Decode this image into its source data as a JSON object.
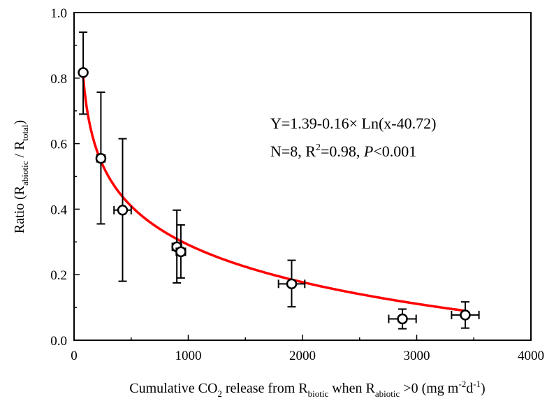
{
  "chart_data": {
    "type": "scatter",
    "title": "",
    "xlabel_parts": {
      "a": "Cumulative CO",
      "sub1": "2",
      "b": " release from R",
      "sub2": "biotic",
      "c": " when R",
      "sub3": "abiotic",
      "d": " >0 (mg m",
      "sup1": "-2",
      "e": "d",
      "sup2": "-1",
      "f": ")"
    },
    "ylabel_parts": {
      "a": "Ratio (R",
      "sub1": "abiotic",
      "b": " / R",
      "sub2": "total",
      "c": ")"
    },
    "xlim": [
      0,
      4000
    ],
    "ylim": [
      0,
      1.0
    ],
    "xticks": [
      0,
      1000,
      2000,
      3000,
      4000
    ],
    "yticks": [
      0.0,
      0.2,
      0.4,
      0.6,
      0.8,
      1.0
    ],
    "xtick_labels": [
      "0",
      "1000",
      "2000",
      "3000",
      "4000"
    ],
    "ytick_labels": [
      "0.0",
      "0.2",
      "0.4",
      "0.6",
      "0.8",
      "1.0"
    ],
    "grid": false,
    "points": [
      {
        "x": 80,
        "y": 0.817,
        "xerr": 20,
        "yerr_low": 0.127,
        "yerr_high": 0.123
      },
      {
        "x": 235,
        "y": 0.555,
        "xerr": 35,
        "yerr_low": 0.2,
        "yerr_high": 0.202
      },
      {
        "x": 425,
        "y": 0.397,
        "xerr": 75,
        "yerr_low": 0.217,
        "yerr_high": 0.218
      },
      {
        "x": 900,
        "y": 0.285,
        "xerr": 40,
        "yerr_low": 0.11,
        "yerr_high": 0.112
      },
      {
        "x": 935,
        "y": 0.27,
        "xerr": 40,
        "yerr_low": 0.08,
        "yerr_high": 0.082
      },
      {
        "x": 1905,
        "y": 0.172,
        "xerr": 115,
        "yerr_low": 0.07,
        "yerr_high": 0.072
      },
      {
        "x": 2875,
        "y": 0.065,
        "xerr": 120,
        "yerr_low": 0.03,
        "yerr_high": 0.03
      },
      {
        "x": 3425,
        "y": 0.077,
        "xerr": 120,
        "yerr_low": 0.04,
        "yerr_high": 0.04
      }
    ],
    "fit": {
      "formula": "1.39 - 0.16*ln(x - 40.72)",
      "a": 1.39,
      "b": 0.16,
      "c": 40.72,
      "x_start": 75,
      "x_end": 3430,
      "color": "#ff0000"
    },
    "annotation": {
      "line1": "Y=1.39-0.16×  Ln(x-40.72)",
      "line2_a": "N=8, R",
      "line2_sup": "2",
      "line2_b": "=0.98, ",
      "line2_p": "P",
      "line2_c": "<0.001"
    },
    "marker": {
      "shape": "circle",
      "fill": "#ffffff",
      "stroke": "#000000"
    }
  }
}
